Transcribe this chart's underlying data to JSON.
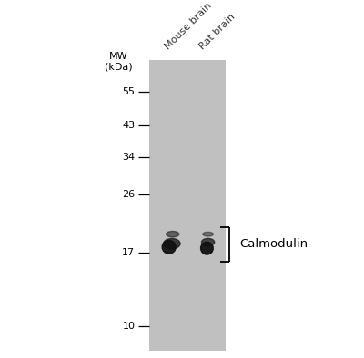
{
  "background_color": "#ffffff",
  "gel_color": "#c0c0c0",
  "mw_labels": [
    {
      "text": "55",
      "kda": 55
    },
    {
      "text": "43",
      "kda": 43
    },
    {
      "text": "34",
      "kda": 34
    },
    {
      "text": "26",
      "kda": 26
    },
    {
      "text": "17",
      "kda": 17
    },
    {
      "text": "10",
      "kda": 10
    }
  ],
  "mw_header": "MW\n(kDa)",
  "lane_labels": [
    "Mouse brain",
    "Rat brain"
  ],
  "lane_label_rotation": 45,
  "band_color": "#111111",
  "annotation_label": "Calmodulin",
  "tick_fontsize": 8,
  "header_fontsize": 8,
  "lane_label_fontsize": 8,
  "annotation_fontsize": 9.5
}
